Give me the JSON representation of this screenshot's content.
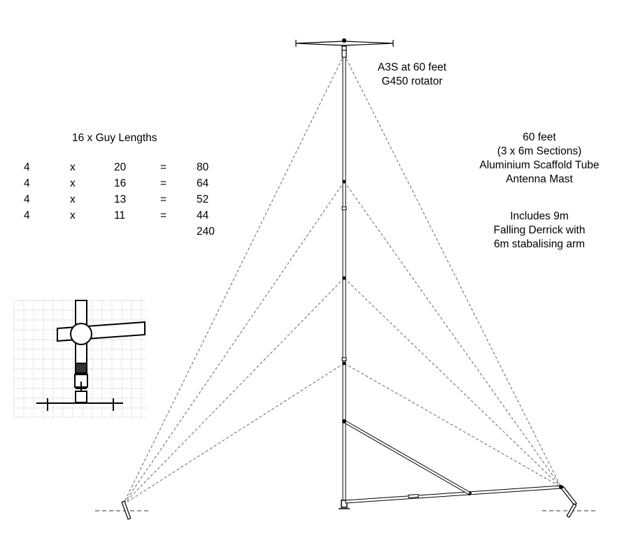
{
  "antenna": {
    "line1": "A3S at 60 feet",
    "line2": "G450 rotator"
  },
  "mast": {
    "lines": [
      "60 feet",
      "(3 x 6m Sections)",
      "Aluminium Scaffold Tube",
      "Antenna Mast"
    ]
  },
  "derrick": {
    "lines": [
      "Includes 9m",
      "Falling Derrick with",
      "6m stabalising arm"
    ]
  },
  "guys": {
    "title": "16 x Guy Lengths",
    "rows": [
      {
        "qty": "4",
        "x": "x",
        "length": "20",
        "eq": "=",
        "total": "80"
      },
      {
        "qty": "4",
        "x": "x",
        "length": "16",
        "eq": "=",
        "total": "64"
      },
      {
        "qty": "4",
        "x": "x",
        "length": "13",
        "eq": "=",
        "total": "52"
      },
      {
        "qty": "4",
        "x": "x",
        "length": "11",
        "eq": "=",
        "total": "44"
      }
    ],
    "grand_total": "240"
  },
  "colors": {
    "line": "#000000",
    "guy": "#666666",
    "grid": "#9a9a9a"
  }
}
